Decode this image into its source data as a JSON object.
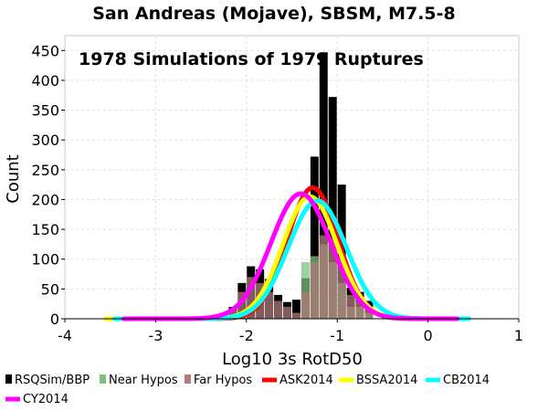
{
  "chart_data": {
    "type": "bar",
    "title": "San Andreas (Mojave), SBSM, M7.5-8",
    "annotation": "1978 Simulations of 1979 Ruptures",
    "xlabel": "Log10 3s RotD50",
    "ylabel": "Count",
    "xlim": [
      -4,
      1
    ],
    "ylim": [
      0,
      475
    ],
    "xticks": [
      -4,
      -3,
      -2,
      -1,
      0,
      1
    ],
    "yticks": [
      0,
      50,
      100,
      150,
      200,
      250,
      300,
      350,
      400,
      450
    ],
    "grid": true,
    "legend_position": "bottom",
    "histogram": {
      "bin_width": 0.1,
      "bin_starts": [
        -2.3,
        -2.2,
        -2.1,
        -2.0,
        -1.9,
        -1.8,
        -1.7,
        -1.6,
        -1.5,
        -1.4,
        -1.3,
        -1.2,
        -1.1,
        -1.0,
        -0.9,
        -0.8,
        -0.7
      ],
      "series": [
        {
          "name": "RSQSim/BBP",
          "color": "#000000",
          "values": [
            8,
            20,
            60,
            88,
            83,
            67,
            40,
            28,
            32,
            68,
            272,
            447,
            372,
            225,
            52,
            45,
            30
          ]
        },
        {
          "name": "Near Hypos",
          "color": "#7fbf7f",
          "values": [
            0,
            0,
            0,
            0,
            0,
            0,
            0,
            0,
            0,
            95,
            105,
            125,
            95,
            60,
            20,
            20,
            10
          ]
        },
        {
          "name": "Far Hypos",
          "color": "#b07a7a",
          "values": [
            5,
            15,
            45,
            70,
            60,
            45,
            30,
            20,
            10,
            45,
            95,
            140,
            135,
            100,
            40,
            30,
            20
          ]
        }
      ]
    },
    "curves": [
      {
        "name": "ASK2014",
        "color": "#ff0000",
        "mean": -1.27,
        "sigma": 0.28,
        "peak": 220,
        "range": [
          -3.35,
          0.25
        ]
      },
      {
        "name": "BSSA2014",
        "color": "#ffff00",
        "mean": -1.3,
        "sigma": 0.3,
        "peak": 205,
        "range": [
          -3.55,
          0.25
        ]
      },
      {
        "name": "CB2014",
        "color": "#00ffff",
        "mean": -1.22,
        "sigma": 0.32,
        "peak": 198,
        "range": [
          -3.45,
          0.45
        ]
      },
      {
        "name": "CY2014",
        "color": "#ff00ff",
        "mean": -1.4,
        "sigma": 0.33,
        "peak": 210,
        "range": [
          -3.35,
          0.32
        ]
      }
    ],
    "legend": [
      {
        "name": "RSQSim/BBP",
        "kind": "box",
        "color": "#000000"
      },
      {
        "name": "Near Hypos",
        "kind": "box",
        "color": "#7fbf7f"
      },
      {
        "name": "Far Hypos",
        "kind": "box",
        "color": "#b07a7a"
      },
      {
        "name": "ASK2014",
        "kind": "line",
        "color": "#ff0000"
      },
      {
        "name": "BSSA2014",
        "kind": "line",
        "color": "#ffff00"
      },
      {
        "name": "CB2014",
        "kind": "line",
        "color": "#00ffff"
      },
      {
        "name": "CY2014",
        "kind": "line",
        "color": "#ff00ff"
      }
    ]
  }
}
